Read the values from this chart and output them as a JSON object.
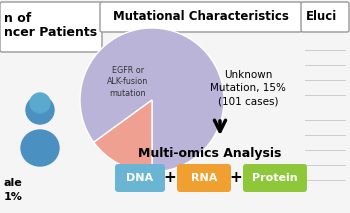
{
  "title": "Mutational Characteristics",
  "pie_values": [
    85,
    15
  ],
  "pie_colors": [
    "#bab5d8",
    "#f0a090"
  ],
  "egfr_label": "EGFR or\nALK-fusion\nmutation",
  "unknown_label": "Unknown\nMutation, 15%\n(101 cases)",
  "multiomics_title": "Multi-omics Analysis",
  "dna_label": "DNA",
  "rna_label": "RNA",
  "protein_label": "Protein",
  "dna_color": "#6ab4d4",
  "rna_color": "#f0a030",
  "protein_color": "#8ec83a",
  "background_color": "#f5f5f5",
  "left_panel_color": "#ffffff",
  "title_box_color": "#ffffff",
  "title_border_color": "#999999",
  "left_title1": "n of",
  "left_title2": "ncer Patients",
  "left_bottom1": "ale",
  "left_bottom2": "1%",
  "right_title": "Eluci",
  "person_color": "#4a90c0"
}
